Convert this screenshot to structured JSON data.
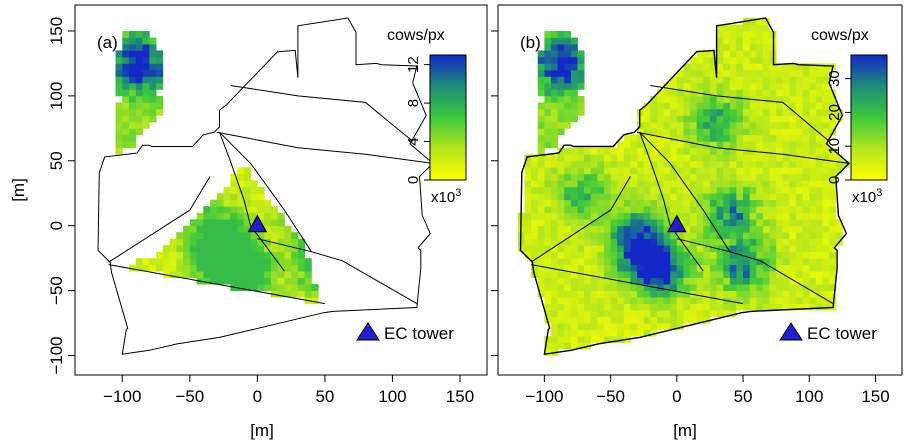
{
  "chart_data": [
    {
      "type": "heatmap",
      "panel_label": "(a)",
      "xlabel": "[m]",
      "ylabel": "[m]",
      "xlim": [
        -135,
        170
      ],
      "ylim": [
        -115,
        170
      ],
      "xticks": [
        -100,
        -50,
        0,
        50,
        100,
        150
      ],
      "yticks": [
        -100,
        -50,
        0,
        50,
        100,
        150
      ],
      "colorbar": {
        "title": "cows/px",
        "multiplier": "x10",
        "multiplier_exp": "3",
        "range": [
          0,
          13
        ],
        "ticks": [
          0,
          4,
          8,
          12
        ],
        "colors": [
          "#ffff00",
          "#b4e61e",
          "#3cc83c",
          "#1e8c78",
          "#1428c8"
        ]
      },
      "annotation": {
        "text": "EC tower",
        "marker": "triangle",
        "x": 0,
        "y": 0,
        "color": "#1f1fd0"
      }
    },
    {
      "type": "heatmap",
      "panel_label": "(b)",
      "xlabel": "[m]",
      "ylabel": "",
      "xlim": [
        -135,
        170
      ],
      "ylim": [
        -115,
        170
      ],
      "xticks": [
        -100,
        -50,
        0,
        50,
        100,
        150
      ],
      "yticks": [
        -100,
        -50,
        0,
        50,
        100,
        150
      ],
      "colorbar": {
        "title": "cows/px",
        "multiplier": "x10",
        "multiplier_exp": "3",
        "range": [
          0,
          37
        ],
        "ticks": [
          0,
          10,
          20,
          30
        ],
        "colors": [
          "#ffff00",
          "#b4e61e",
          "#3cc83c",
          "#1e8c78",
          "#1428c8"
        ]
      },
      "annotation": {
        "text": "EC tower",
        "marker": "triangle",
        "x": 0,
        "y": 0,
        "color": "#1f1fd0"
      }
    }
  ],
  "field_outline": {
    "outer": [
      [
        -117,
        41
      ],
      [
        -113,
        53
      ],
      [
        -89,
        56
      ],
      [
        -85,
        62
      ],
      [
        -80,
        62
      ],
      [
        -78,
        61
      ],
      [
        -48,
        61
      ],
      [
        -40,
        70
      ],
      [
        -32,
        72
      ],
      [
        -28,
        76
      ],
      [
        -28,
        89
      ],
      [
        -23,
        93
      ],
      [
        15,
        134
      ],
      [
        28,
        135
      ],
      [
        30,
        114
      ],
      [
        30,
        144
      ],
      [
        30,
        154
      ],
      [
        67,
        160
      ],
      [
        73,
        149
      ],
      [
        73,
        124
      ],
      [
        88,
        125
      ],
      [
        92,
        124
      ],
      [
        118,
        123
      ],
      [
        115,
        110
      ],
      [
        125,
        85
      ],
      [
        113,
        63
      ],
      [
        130,
        48
      ],
      [
        120,
        38
      ],
      [
        122,
        8
      ],
      [
        128,
        -6
      ],
      [
        119,
        -17
      ],
      [
        121,
        -19
      ],
      [
        121,
        -33
      ],
      [
        118,
        -63
      ],
      [
        56,
        -66
      ],
      [
        49,
        -67
      ],
      [
        -28,
        -86
      ],
      [
        -59,
        -91
      ],
      [
        -80,
        -96
      ],
      [
        -100,
        -99
      ],
      [
        -97,
        -80
      ],
      [
        -96,
        -79
      ],
      [
        -108,
        -36
      ],
      [
        -109,
        -28
      ],
      [
        -118,
        -19
      ]
    ],
    "paddock_lines": [
      [
        [
          -28,
          72
        ],
        [
          -5,
          48
        ],
        [
          20,
          12
        ],
        [
          40,
          -20
        ]
      ],
      [
        [
          -28,
          72
        ],
        [
          -20,
          50
        ],
        [
          -10,
          20
        ],
        [
          -5,
          0
        ],
        [
          20,
          -35
        ]
      ],
      [
        [
          -110,
          -28
        ],
        [
          -50,
          12
        ],
        [
          -35,
          38
        ]
      ],
      [
        [
          -110,
          -30
        ],
        [
          -30,
          -45
        ],
        [
          50,
          -60
        ]
      ],
      [
        [
          0,
          -10
        ],
        [
          40,
          -20
        ],
        [
          63,
          -27
        ],
        [
          118,
          -60
        ]
      ],
      [
        [
          -20,
          108
        ],
        [
          30,
          100
        ],
        [
          80,
          95
        ],
        [
          115,
          65
        ]
      ],
      [
        [
          -30,
          72
        ],
        [
          30,
          60
        ],
        [
          80,
          55
        ],
        [
          130,
          48
        ]
      ]
    ],
    "region_a_triangle": [
      [
        -8,
        48
      ],
      [
        -5,
        38
      ],
      [
        32,
        -10
      ],
      [
        48,
        -60
      ],
      [
        -100,
        -32
      ],
      [
        -70,
        -20
      ]
    ]
  },
  "hotspots": [
    {
      "x": -87,
      "y": 125,
      "weight": 1.0
    },
    {
      "x": -25,
      "y": -25,
      "weight": 0.85
    },
    {
      "x": -10,
      "y": -35,
      "weight": 0.8
    },
    {
      "x": 40,
      "y": 10,
      "weight": 0.7
    },
    {
      "x": 50,
      "y": -30,
      "weight": 0.75
    },
    {
      "x": 30,
      "y": 80,
      "weight": 0.6
    },
    {
      "x": -70,
      "y": 25,
      "weight": 0.5
    },
    {
      "x": -30,
      "y": -5,
      "weight": 0.7
    }
  ]
}
